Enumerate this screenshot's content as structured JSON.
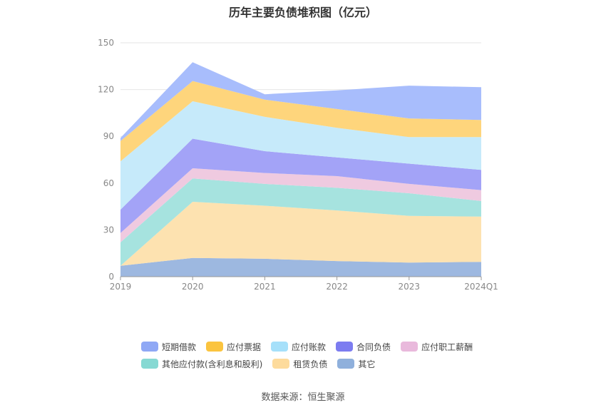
{
  "title": "历年主要负债堆积图（亿元）",
  "source": "数据来源：恒生聚源",
  "chart_data": {
    "type": "area",
    "stacked": true,
    "title": "历年主要负债堆积图（亿元）",
    "categories": [
      "2019",
      "2020",
      "2021",
      "2022",
      "2023",
      "2024Q1"
    ],
    "ylim": [
      0,
      150
    ],
    "yticks": [
      0,
      30,
      60,
      90,
      120,
      150
    ],
    "grid": true,
    "legend_position": "bottom",
    "series": [
      {
        "name": "其它",
        "color": "#9db8e0",
        "values": [
          7,
          12,
          11.5,
          10,
          9,
          9.5
        ]
      },
      {
        "name": "租赁负债",
        "color": "#fde2b0",
        "values": [
          0,
          36,
          34,
          32.5,
          30,
          29
        ]
      },
      {
        "name": "其他应付款(含利息和股利)",
        "color": "#a6e3df",
        "values": [
          15,
          15,
          14,
          14.5,
          14.5,
          10
        ]
      },
      {
        "name": "应付职工薪酬",
        "color": "#efcae0",
        "values": [
          6,
          6.5,
          7,
          7.5,
          6,
          7
        ]
      },
      {
        "name": "合同负债",
        "color": "#a3a3f7",
        "values": [
          15,
          19,
          14,
          12,
          13,
          13
        ]
      },
      {
        "name": "应付账款",
        "color": "#c6eafa",
        "values": [
          31,
          24,
          22,
          19,
          17,
          21
        ]
      },
      {
        "name": "应付票据",
        "color": "#fed57c",
        "values": [
          13,
          13,
          11,
          12,
          12,
          11
        ]
      },
      {
        "name": "短期借款",
        "color": "#a8bdfc",
        "values": [
          2,
          12,
          3.5,
          12,
          21,
          21
        ]
      }
    ]
  },
  "legend": [
    [
      {
        "label": "短期借款",
        "color": "#8fa8f5"
      },
      {
        "label": "应付票据",
        "color": "#fbc43f"
      },
      {
        "label": "应付账款",
        "color": "#a6e0fa"
      },
      {
        "label": "合同负债",
        "color": "#7c7cf0"
      },
      {
        "label": "应付职工薪酬",
        "color": "#e9b9dc"
      }
    ],
    [
      {
        "label": "其他应付款(含利息和股利)",
        "color": "#86d9d3"
      },
      {
        "label": "租赁负债",
        "color": "#fddb9c"
      },
      {
        "label": "其它",
        "color": "#8fb0dc"
      }
    ]
  ]
}
